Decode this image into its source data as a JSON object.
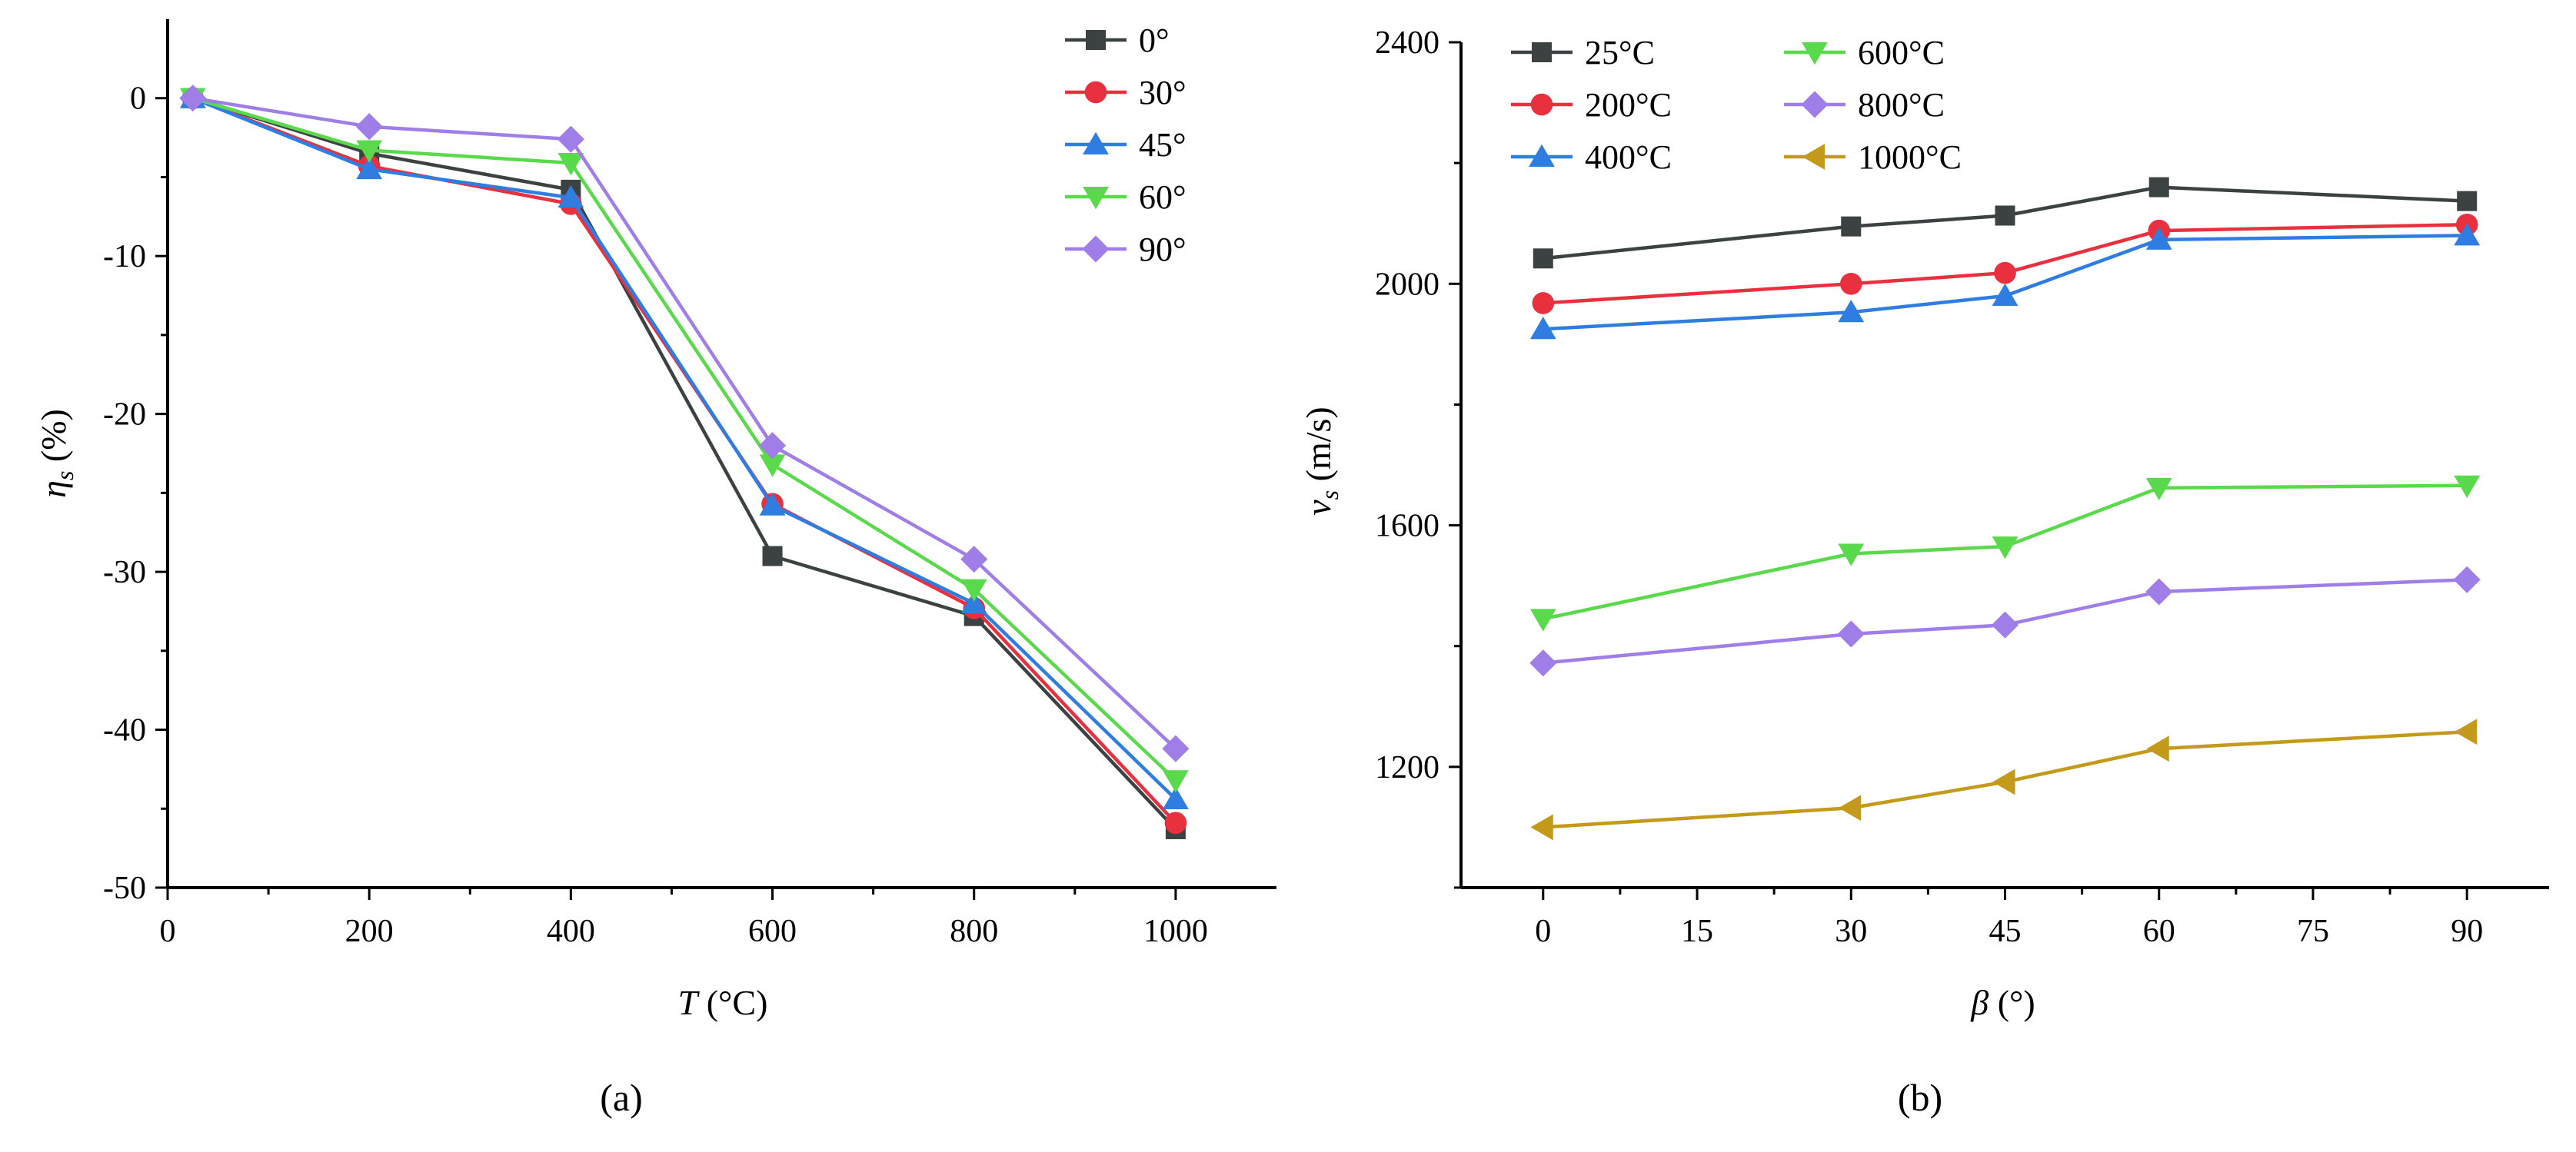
{
  "chart_data": [
    {
      "type": "line",
      "panel_label": "(a)",
      "xlabel": "T",
      "xlabel_unit": " (°C)",
      "ylabel": "η",
      "ylabel_sub": "s",
      "ylabel_unit": " (%)",
      "xlim": [
        0,
        1100
      ],
      "ylim": [
        -50,
        5
      ],
      "xticks": [
        0,
        200,
        400,
        600,
        800,
        1000
      ],
      "yticks": [
        0,
        -10,
        -20,
        -30,
        -40,
        -50
      ],
      "legend_position": "top-right",
      "x": [
        25,
        200,
        400,
        600,
        800,
        1000
      ],
      "series": [
        {
          "name": "0°",
          "color": "#3c4142",
          "marker": "square",
          "values": [
            0,
            -3.5,
            -5.8,
            -29.0,
            -32.8,
            -46.3
          ]
        },
        {
          "name": "30°",
          "color": "#e8303f",
          "marker": "circle",
          "values": [
            0,
            -4.3,
            -6.7,
            -25.7,
            -32.3,
            -45.9
          ]
        },
        {
          "name": "45°",
          "color": "#2f7de1",
          "marker": "triangle-up",
          "values": [
            0,
            -4.5,
            -6.3,
            -25.8,
            -32.0,
            -44.4
          ]
        },
        {
          "name": "60°",
          "color": "#5ad94c",
          "marker": "triangle-down",
          "values": [
            0,
            -3.3,
            -4.1,
            -23.2,
            -31.1,
            -43.2
          ]
        },
        {
          "name": "90°",
          "color": "#a07ee8",
          "marker": "diamond",
          "values": [
            0,
            -1.8,
            -2.6,
            -22.0,
            -29.2,
            -41.2
          ]
        }
      ]
    },
    {
      "type": "line",
      "panel_label": "(b)",
      "xlabel": "β",
      "xlabel_unit": " (°)",
      "ylabel": "v",
      "ylabel_sub": "s",
      "ylabel_unit": " (m/s)",
      "xlim": [
        -8,
        98
      ],
      "ylim": [
        1000,
        2400
      ],
      "xticks": [
        0,
        15,
        30,
        45,
        60,
        75,
        90
      ],
      "yticks": [
        1200,
        1600,
        2000,
        2400
      ],
      "legend_position": "top-left",
      "x": [
        0,
        30,
        45,
        60,
        90
      ],
      "series": [
        {
          "name": "25°C",
          "color": "#3c4142",
          "marker": "square",
          "values": [
            2042,
            2095,
            2113,
            2160,
            2137
          ]
        },
        {
          "name": "200°C",
          "color": "#e8303f",
          "marker": "circle",
          "values": [
            1968,
            2000,
            2018,
            2088,
            2098
          ]
        },
        {
          "name": "400°C",
          "color": "#2f7de1",
          "marker": "triangle-up",
          "values": [
            1925,
            1953,
            1980,
            2073,
            2080
          ]
        },
        {
          "name": "600°C",
          "color": "#5ad94c",
          "marker": "triangle-down",
          "values": [
            1445,
            1553,
            1565,
            1662,
            1666
          ]
        },
        {
          "name": "800°C",
          "color": "#a07ee8",
          "marker": "diamond",
          "values": [
            1372,
            1420,
            1435,
            1490,
            1510
          ]
        },
        {
          "name": "1000°C",
          "color": "#c49a1a",
          "marker": "triangle-left",
          "values": [
            1100,
            1132,
            1175,
            1230,
            1258
          ]
        }
      ]
    }
  ]
}
